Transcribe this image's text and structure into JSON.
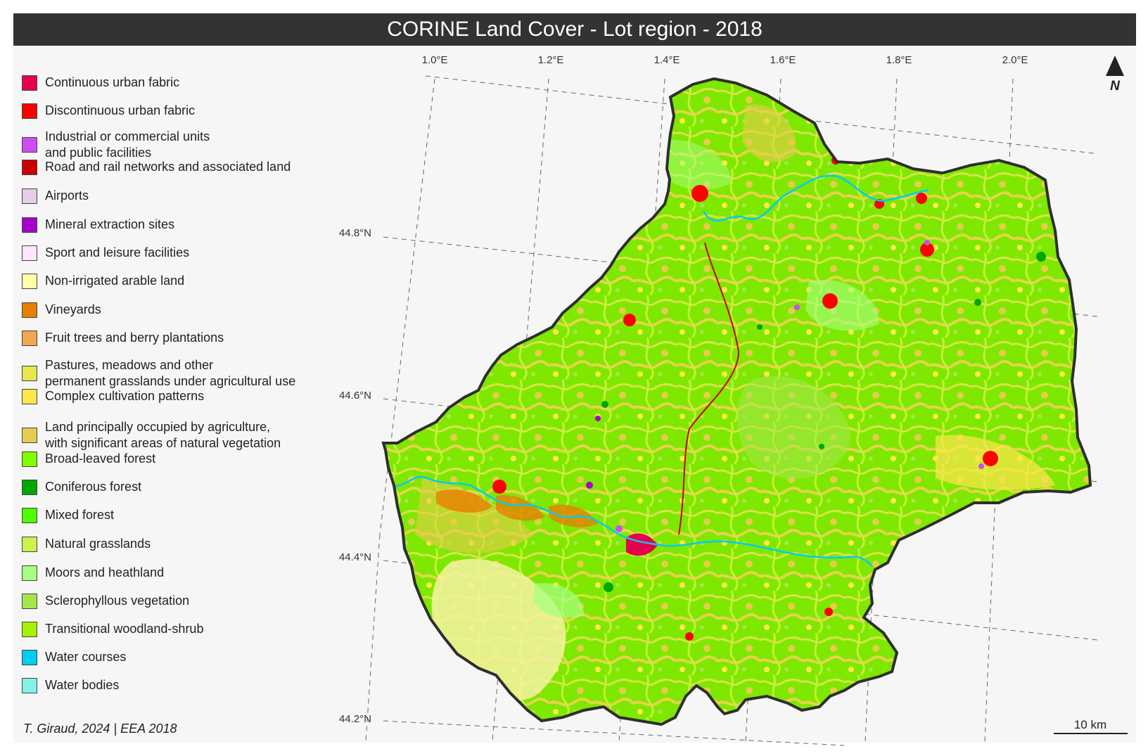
{
  "title": "CORINE Land Cover - Lot region - 2018",
  "credit": "T. Giraud, 2024 | EEA 2018",
  "north_label": "N",
  "scale_label": "10 km",
  "longitude_labels": [
    "1.0°E",
    "1.2°E",
    "1.4°E",
    "1.6°E",
    "1.8°E",
    "2.0°E"
  ],
  "latitude_labels": [
    "44.8°N",
    "44.6°N",
    "44.4°N",
    "44.2°N"
  ],
  "legend": [
    {
      "label": "Continuous urban fabric",
      "color": "#e6004d"
    },
    {
      "label": "Discontinuous urban fabric",
      "color": "#ff0000"
    },
    {
      "label": "Industrial or commercial units\nand public facilities",
      "color": "#cc4df2"
    },
    {
      "label": "Road and rail networks and associated land",
      "color": "#cc0000"
    },
    {
      "label": "Airports",
      "color": "#e6cce6"
    },
    {
      "label": "Mineral extraction sites",
      "color": "#a600cc"
    },
    {
      "label": "Sport and leisure facilities",
      "color": "#ffe6ff"
    },
    {
      "label": "Non-irrigated arable land",
      "color": "#ffffa8"
    },
    {
      "label": "Vineyards",
      "color": "#e68000"
    },
    {
      "label": "Fruit trees and berry plantations",
      "color": "#f2a64d"
    },
    {
      "label": "Pastures, meadows and other\npermanent grasslands under agricultural use",
      "color": "#e6e64d"
    },
    {
      "label": "Complex cultivation patterns",
      "color": "#ffe64d"
    },
    {
      "label": "Land principally occupied by agriculture,\nwith significant areas of natural vegetation",
      "color": "#e6cc4d"
    },
    {
      "label": "Broad-leaved forest",
      "color": "#80ff00"
    },
    {
      "label": "Coniferous forest",
      "color": "#00a600"
    },
    {
      "label": "Mixed forest",
      "color": "#4dff00"
    },
    {
      "label": "Natural grasslands",
      "color": "#ccf24d"
    },
    {
      "label": "Moors and heathland",
      "color": "#a6ff80"
    },
    {
      "label": "Sclerophyllous vegetation",
      "color": "#a6e64d"
    },
    {
      "label": "Transitional woodland-shrub",
      "color": "#a6f200"
    },
    {
      "label": "Water courses",
      "color": "#00ccf2"
    },
    {
      "label": "Water bodies",
      "color": "#80f2e6"
    }
  ]
}
